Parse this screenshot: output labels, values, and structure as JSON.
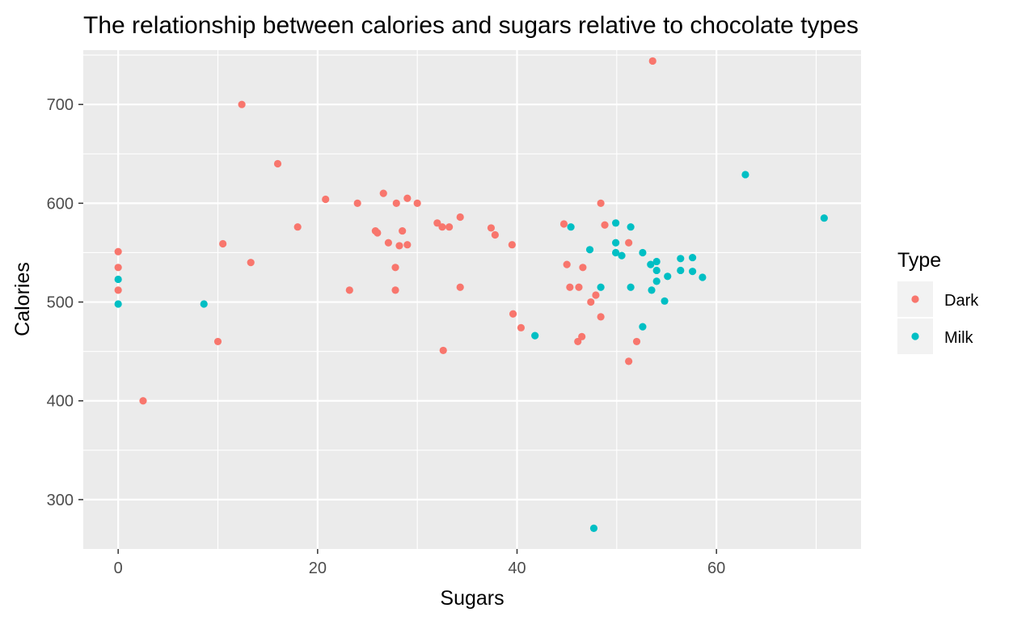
{
  "chart_data": {
    "type": "scatter",
    "title": "The relationship between calories and sugars relative to chocolate types",
    "xlabel": "Sugars",
    "ylabel": "Calories",
    "xlim": [
      -3.5,
      74.5
    ],
    "ylim": [
      250,
      755
    ],
    "x_ticks": [
      0,
      20,
      40,
      60
    ],
    "y_ticks": [
      300,
      400,
      500,
      600,
      700
    ],
    "grid": true,
    "legend": {
      "title": "Type",
      "position": "right"
    },
    "series": [
      {
        "name": "Dark",
        "color": "#F8766D",
        "points": [
          [
            0,
            551
          ],
          [
            0,
            535
          ],
          [
            0,
            512
          ],
          [
            2.5,
            400
          ],
          [
            10,
            460
          ],
          [
            10.5,
            559
          ],
          [
            12.4,
            700
          ],
          [
            13.3,
            540
          ],
          [
            16,
            640
          ],
          [
            18,
            576
          ],
          [
            20.8,
            604
          ],
          [
            23.2,
            512
          ],
          [
            24,
            600
          ],
          [
            25.8,
            572
          ],
          [
            26,
            570
          ],
          [
            26.6,
            610
          ],
          [
            27.1,
            560
          ],
          [
            27.8,
            535
          ],
          [
            27.8,
            512
          ],
          [
            27.9,
            600
          ],
          [
            28.2,
            557
          ],
          [
            28.5,
            572
          ],
          [
            29,
            605
          ],
          [
            29,
            558
          ],
          [
            30,
            600
          ],
          [
            32,
            580
          ],
          [
            32.5,
            576
          ],
          [
            32.6,
            451
          ],
          [
            33.2,
            576
          ],
          [
            34.3,
            586
          ],
          [
            34.3,
            515
          ],
          [
            37.4,
            575
          ],
          [
            37.8,
            568
          ],
          [
            39.5,
            558
          ],
          [
            39.6,
            488
          ],
          [
            40.4,
            474
          ],
          [
            44.7,
            579
          ],
          [
            45,
            538
          ],
          [
            45.3,
            515
          ],
          [
            46.1,
            460
          ],
          [
            46.2,
            515
          ],
          [
            46.5,
            465
          ],
          [
            46.6,
            535
          ],
          [
            47.4,
            500
          ],
          [
            47.9,
            507
          ],
          [
            48.4,
            485
          ],
          [
            48.4,
            600
          ],
          [
            48.8,
            578
          ],
          [
            51.2,
            560
          ],
          [
            51.2,
            440
          ],
          [
            52,
            460
          ],
          [
            53.6,
            744
          ]
        ]
      },
      {
        "name": "Milk",
        "color": "#00BFC4",
        "points": [
          [
            0,
            523
          ],
          [
            0,
            498
          ],
          [
            8.6,
            498
          ],
          [
            41.8,
            466
          ],
          [
            45.4,
            576
          ],
          [
            47.3,
            553
          ],
          [
            47.7,
            271
          ],
          [
            48.4,
            515
          ],
          [
            49.9,
            580
          ],
          [
            49.9,
            560
          ],
          [
            49.9,
            550
          ],
          [
            50.5,
            547
          ],
          [
            51.4,
            576
          ],
          [
            51.4,
            515
          ],
          [
            52.6,
            550
          ],
          [
            52.6,
            475
          ],
          [
            53.4,
            538
          ],
          [
            53.5,
            512
          ],
          [
            54,
            541
          ],
          [
            54,
            532
          ],
          [
            54,
            521
          ],
          [
            54.8,
            501
          ],
          [
            55.1,
            526
          ],
          [
            56.4,
            544
          ],
          [
            56.4,
            532
          ],
          [
            57.6,
            545
          ],
          [
            57.6,
            531
          ],
          [
            58.6,
            525
          ],
          [
            62.9,
            629
          ],
          [
            70.8,
            585
          ]
        ]
      }
    ]
  }
}
